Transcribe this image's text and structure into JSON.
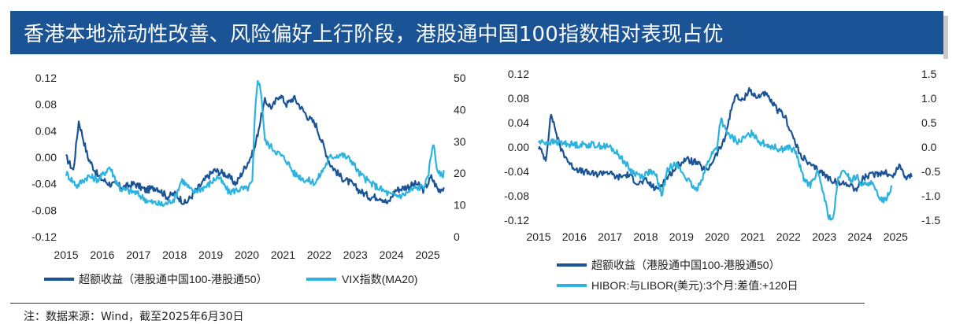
{
  "title": "香港本地流动性改善、风险偏好上行阶段，港股通中国100指数相对表现占优",
  "note": "注：数据来源：Wind，截至2025年6月30日",
  "colors": {
    "dark": "#1a5396",
    "light": "#2cb3e0",
    "title_bg": "#1a5396"
  },
  "chart_data": [
    {
      "type": "line",
      "x_ticks": [
        "2015",
        "2016",
        "2017",
        "2018",
        "2019",
        "2020",
        "2021",
        "2022",
        "2023",
        "2024",
        "2025"
      ],
      "xlim": [
        2015.0,
        2025.5
      ],
      "left_axis": {
        "ticks": [
          "0.12",
          "0.08",
          "0.04",
          "0.00",
          "-0.04",
          "-0.08",
          "-0.12"
        ],
        "ylim": [
          -0.12,
          0.12
        ]
      },
      "right_axis": {
        "ticks": [
          "50",
          "40",
          "30",
          "20",
          "10",
          "0"
        ],
        "ylim": [
          0,
          50
        ]
      },
      "series": [
        {
          "name": "超额收益（港股通中国100-港股通50）",
          "axis": "left",
          "x": [
            2015.0,
            2015.2,
            2015.35,
            2015.6,
            2015.9,
            2016.2,
            2016.6,
            2016.9,
            2017.2,
            2017.5,
            2017.8,
            2018.0,
            2018.3,
            2018.6,
            2018.9,
            2019.1,
            2019.4,
            2019.7,
            2020.0,
            2020.2,
            2020.35,
            2020.5,
            2020.7,
            2020.9,
            2021.1,
            2021.3,
            2021.5,
            2021.7,
            2021.9,
            2022.1,
            2022.3,
            2022.6,
            2022.9,
            2023.1,
            2023.4,
            2023.7,
            2023.9,
            2024.1,
            2024.4,
            2024.7,
            2024.9,
            2025.1,
            2025.3,
            2025.45
          ],
          "y": [
            0.0,
            -0.02,
            0.055,
            0.0,
            -0.03,
            -0.04,
            -0.045,
            -0.04,
            -0.05,
            -0.045,
            -0.06,
            -0.055,
            -0.07,
            -0.05,
            -0.03,
            -0.02,
            -0.025,
            -0.04,
            -0.01,
            0.01,
            0.05,
            0.085,
            0.075,
            0.095,
            0.08,
            0.09,
            0.075,
            0.06,
            0.05,
            0.02,
            -0.01,
            -0.03,
            -0.04,
            -0.05,
            -0.06,
            -0.06,
            -0.07,
            -0.05,
            -0.045,
            -0.04,
            -0.05,
            -0.03,
            -0.05,
            -0.045
          ]
        },
        {
          "name": "VIX指数(MA20)",
          "axis": "right",
          "x": [
            2015.0,
            2015.3,
            2015.6,
            2015.9,
            2016.2,
            2016.5,
            2016.9,
            2017.3,
            2017.7,
            2018.0,
            2018.2,
            2018.5,
            2018.9,
            2019.2,
            2019.5,
            2019.8,
            2020.0,
            2020.15,
            2020.22,
            2020.3,
            2020.4,
            2020.5,
            2020.7,
            2020.9,
            2021.1,
            2021.3,
            2021.6,
            2021.9,
            2022.1,
            2022.3,
            2022.6,
            2022.9,
            2023.1,
            2023.4,
            2023.7,
            2024.0,
            2024.3,
            2024.6,
            2024.9,
            2025.0,
            2025.15,
            2025.25,
            2025.35,
            2025.45
          ],
          "y": [
            20,
            16,
            19,
            18,
            22,
            15,
            14,
            11,
            10,
            12,
            18,
            14,
            16,
            19,
            14,
            15,
            15,
            17,
            38,
            50,
            45,
            30,
            28,
            26,
            24,
            20,
            18,
            17,
            21,
            25,
            26,
            24,
            20,
            17,
            15,
            13,
            13,
            15,
            16,
            18,
            30,
            22,
            19,
            20
          ]
        }
      ],
      "legend": [
        "超额收益（港股通中国100-港股通50）",
        "VIX指数(MA20)"
      ]
    },
    {
      "type": "line",
      "x_ticks": [
        "2015",
        "2016",
        "2017",
        "2018",
        "2019",
        "2020",
        "2021",
        "2022",
        "2023",
        "2024",
        "2025"
      ],
      "xlim": [
        2015.0,
        2025.5
      ],
      "left_axis": {
        "ticks": [
          "0.12",
          "0.08",
          "0.04",
          "0.00",
          "-0.04",
          "-0.08",
          "-0.12"
        ],
        "ylim": [
          -0.12,
          0.12
        ]
      },
      "right_axis": {
        "ticks": [
          "1.5",
          "1.0",
          "0.5",
          "0.0",
          "-0.5",
          "-1.0",
          "-1.5"
        ],
        "ylim": [
          -1.5,
          1.5
        ]
      },
      "series": [
        {
          "name": "超额收益（港股通中国100-港股通50）",
          "axis": "left",
          "x": [
            2015.0,
            2015.2,
            2015.35,
            2015.6,
            2015.9,
            2016.2,
            2016.6,
            2016.9,
            2017.2,
            2017.5,
            2017.8,
            2018.0,
            2018.3,
            2018.6,
            2018.9,
            2019.1,
            2019.4,
            2019.7,
            2020.0,
            2020.2,
            2020.35,
            2020.5,
            2020.7,
            2020.9,
            2021.1,
            2021.3,
            2021.5,
            2021.7,
            2021.9,
            2022.1,
            2022.3,
            2022.6,
            2022.9,
            2023.1,
            2023.4,
            2023.7,
            2023.9,
            2024.1,
            2024.4,
            2024.7,
            2024.9,
            2025.1,
            2025.3,
            2025.45
          ],
          "y": [
            0.0,
            -0.02,
            0.055,
            0.0,
            -0.03,
            -0.04,
            -0.045,
            -0.04,
            -0.05,
            -0.045,
            -0.06,
            -0.055,
            -0.07,
            -0.05,
            -0.03,
            -0.02,
            -0.025,
            -0.04,
            -0.01,
            0.01,
            0.05,
            0.085,
            0.075,
            0.095,
            0.08,
            0.09,
            0.075,
            0.06,
            0.05,
            0.02,
            -0.01,
            -0.03,
            -0.04,
            -0.05,
            -0.06,
            -0.06,
            -0.07,
            -0.05,
            -0.045,
            -0.04,
            -0.05,
            -0.03,
            -0.05,
            -0.045
          ]
        },
        {
          "name": "HIBOR:与LIBOR(美元):3个月:差值:+120日",
          "axis": "right",
          "x": [
            2015.0,
            2015.5,
            2016.0,
            2016.5,
            2017.0,
            2017.3,
            2017.6,
            2017.9,
            2018.1,
            2018.3,
            2018.45,
            2018.6,
            2018.8,
            2019.0,
            2019.2,
            2019.4,
            2019.6,
            2019.8,
            2020.0,
            2020.1,
            2020.25,
            2020.4,
            2020.6,
            2020.8,
            2021.0,
            2021.2,
            2021.4,
            2021.6,
            2021.8,
            2022.0,
            2022.2,
            2022.4,
            2022.6,
            2022.8,
            2023.0,
            2023.1,
            2023.25,
            2023.4,
            2023.6,
            2023.75,
            2023.9,
            2024.1,
            2024.3,
            2024.5,
            2024.7,
            2024.9
          ],
          "y": [
            0.1,
            0.1,
            0.05,
            0.05,
            0.0,
            -0.2,
            -0.5,
            -0.6,
            -0.5,
            -0.6,
            -1.0,
            -0.5,
            -0.3,
            -0.5,
            -0.7,
            -0.9,
            -0.6,
            -0.2,
            0.0,
            0.6,
            0.3,
            0.2,
            0.1,
            0.2,
            0.3,
            0.1,
            0.05,
            0.0,
            -0.05,
            0.0,
            -0.1,
            -0.6,
            -0.8,
            -0.5,
            -1.0,
            -1.4,
            -1.5,
            -0.6,
            -0.5,
            -0.7,
            -0.6,
            -0.8,
            -0.7,
            -1.0,
            -1.1,
            -0.8
          ]
        }
      ],
      "legend": [
        "超额收益（港股通中国100-港股通50）",
        "HIBOR:与LIBOR(美元):3个月:差值:+120日"
      ]
    }
  ]
}
